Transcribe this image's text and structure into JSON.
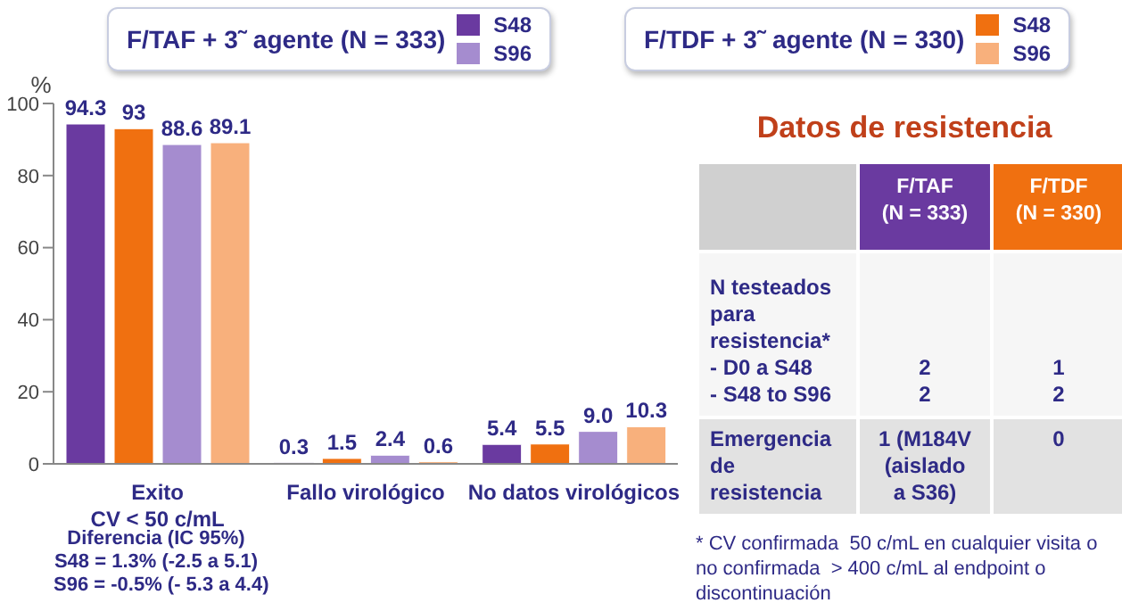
{
  "chart_data": [
    {
      "type": "bar",
      "ylabel": "%",
      "categories": [
        "Exito\nCV < 50 c/mL",
        "Fallo virológico",
        "No datos virológicos"
      ],
      "series": [
        {
          "name": "S48",
          "color": "#6a3aa0",
          "values": [
            94.3,
            0.3,
            5.4
          ],
          "value_labels": [
            "94.3",
            "0.3",
            "5.4"
          ]
        },
        {
          "name": "S48",
          "color": "#f07010",
          "values": [
            93,
            1.5,
            5.5
          ],
          "value_labels": [
            "93",
            "1.5",
            "5.5"
          ]
        },
        {
          "name": "S96",
          "color": "#a58ccf",
          "values": [
            88.6,
            2.4,
            9.0
          ],
          "value_labels": [
            "88.6",
            "2.4",
            "9.0"
          ]
        },
        {
          "name": "S96",
          "color": "#f8b07c",
          "values": [
            89.1,
            0.6,
            10.3
          ],
          "value_labels": [
            "89.1",
            "0.6",
            "10.3"
          ]
        }
      ],
      "ylim": [
        0,
        100
      ],
      "yticks": [
        0,
        20,
        40,
        60,
        80,
        100
      ],
      "legend": "top",
      "annotations": [
        "F/TAF + 3˜ agente (N = 333)",
        "F/TDF + 3˜ agente (N = 330)",
        "Diferencia (IC 95%)\nS48 = 1.3% (-2.5 a 5.1)\nS96 = -0.5% (- 5.3 a 4.4)"
      ]
    },
    {
      "type": "other",
      "title": "Datos de resistencia",
      "categories": [
        null,
        "F/TAF\n(N = 333)",
        "F/TDF\n(N = 330)"
      ],
      "colors": [
        "#d0d0d0",
        "#6a3aa0",
        "#f07010"
      ],
      "y_categories": [
        "N testeados\npara\nresistencia*\n- D0 a S48\n- S48 to S96",
        "Emergencia\nde resistencia"
      ],
      "cell_labels": [
        [
          "2\n2",
          "1\n2"
        ],
        [
          "1 (M184V\n(aislado\na S36)",
          "0"
        ]
      ],
      "annotations": [
        "* CV confirmada  50 c/mL en cualquier visita o no confirmada  > 400 c/mL al endpoint o discontinuación"
      ]
    }
  ]
}
